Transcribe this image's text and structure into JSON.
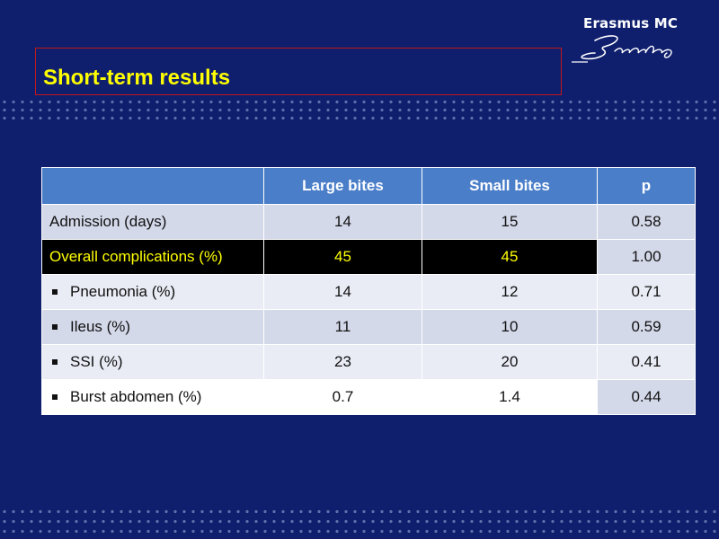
{
  "slide": {
    "title": "Short-term results",
    "logo_text": "Erasmus MC",
    "logo_signature": "Erasmus"
  },
  "colors": {
    "background": "#0f1f6e",
    "title": "#ffff00",
    "header_fill": "#4a7ec9",
    "row_fill_dark": "#d4d9ea",
    "row_fill_light": "#e9ecf5",
    "highlight_fill": "#000000",
    "highlight_text": "#ffff00",
    "title_box_border": "#c21818"
  },
  "table": {
    "headers": [
      "",
      "Large bites",
      "Small bites",
      "p"
    ],
    "rows": [
      {
        "label": "Admission (days)",
        "bullet": false,
        "large": "14",
        "small": "15",
        "p": "0.58"
      },
      {
        "label": "Overall complications (%)",
        "bullet": false,
        "highlight": true,
        "large": "45",
        "small": "45",
        "p": "1.00"
      },
      {
        "label": "Pneumonia (%)",
        "bullet": true,
        "large": "14",
        "small": "12",
        "p": "0.71"
      },
      {
        "label": "Ileus (%)",
        "bullet": true,
        "large": "11",
        "small": "10",
        "p": "0.59"
      },
      {
        "label": "SSI (%)",
        "bullet": true,
        "large": "23",
        "small": "20",
        "p": "0.41"
      },
      {
        "label": "Burst abdomen (%)",
        "bullet": true,
        "large": "0.7",
        "small": "1.4",
        "p": "0.44"
      }
    ]
  }
}
